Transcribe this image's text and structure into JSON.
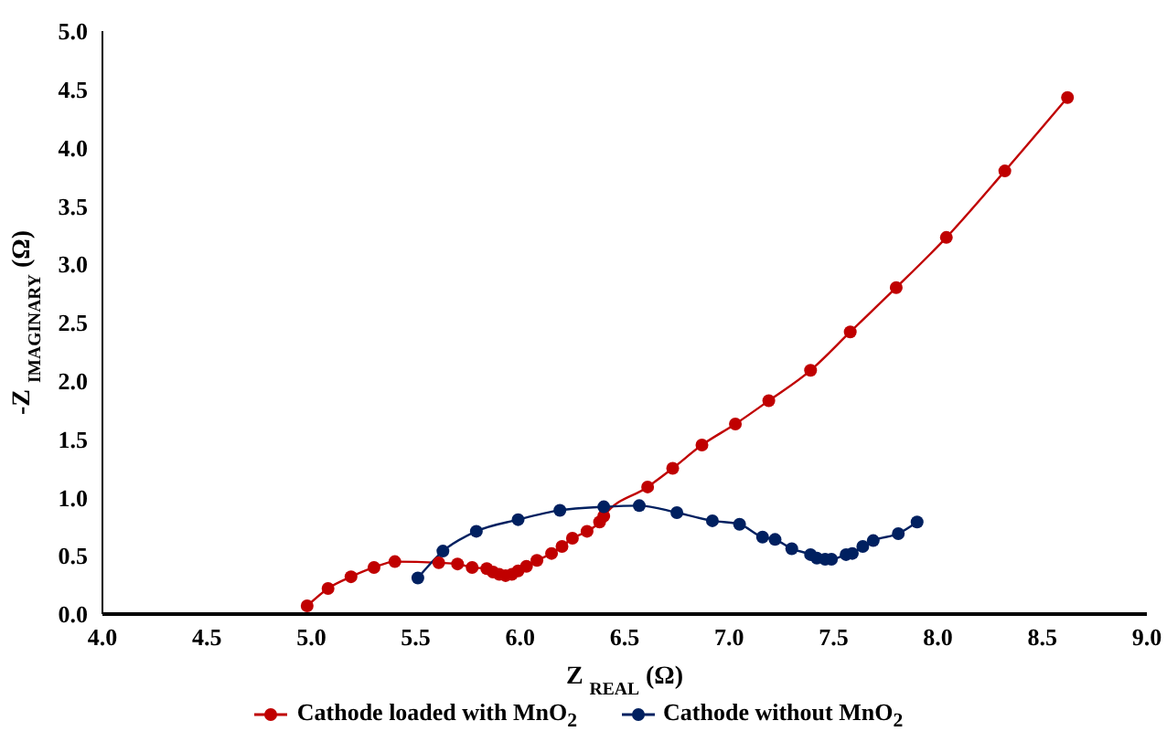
{
  "chart_data": {
    "type": "line",
    "xlabel": "Z $_{REAL}$ (Ω)",
    "ylabel": "-Z $_{IMAGINARY}$ (Ω)",
    "xlim": [
      4.0,
      9.0
    ],
    "ylim": [
      0,
      5.0
    ],
    "xticks": [
      {
        "value": 4,
        "label": "4.0"
      },
      4.5,
      {
        "value": 5,
        "label": "5.0"
      },
      5.5,
      {
        "value": 6,
        "label": "6.0"
      },
      6.5,
      {
        "value": 7,
        "label": "7.0"
      },
      7.5,
      {
        "value": 8,
        "label": "8.0"
      },
      8.5,
      {
        "value": 9,
        "label": "9.0"
      }
    ],
    "yticks": [
      {
        "value": 0,
        "label": "0.0"
      },
      0.5,
      {
        "value": 1,
        "label": "1.0"
      },
      1.5,
      {
        "value": 2,
        "label": "2.0"
      },
      2.5,
      {
        "value": 3,
        "label": "3.0"
      },
      3.5,
      {
        "value": 4,
        "label": "4.0"
      },
      4.5,
      {
        "value": 5,
        "label": "5.0"
      }
    ],
    "grid": false,
    "legend": "bottom",
    "marker": "circle",
    "line_style": "solid",
    "series": [
      {
        "name": "Cathode loaded with MnO$_{2}$",
        "color": "#c00000",
        "x": [
          4.98,
          5.08,
          5.19,
          5.3,
          5.4,
          5.61,
          5.7,
          5.77,
          5.84,
          5.87,
          5.9,
          5.93,
          5.96,
          5.99,
          6.03,
          6.08,
          6.15,
          6.2,
          6.25,
          6.32,
          6.38,
          6.4,
          6.61,
          6.73,
          6.87,
          7.03,
          7.19,
          7.39,
          7.58,
          7.8,
          8.04,
          8.32,
          8.62
        ],
        "values": [
          0.07,
          0.22,
          0.32,
          0.4,
          0.45,
          0.44,
          0.43,
          0.4,
          0.39,
          0.36,
          0.34,
          0.33,
          0.34,
          0.37,
          0.41,
          0.46,
          0.52,
          0.58,
          0.65,
          0.71,
          0.79,
          0.84,
          1.09,
          1.25,
          1.45,
          1.63,
          1.83,
          2.09,
          2.42,
          2.8,
          3.23,
          3.8,
          4.43
        ]
      },
      {
        "name": "Cathode without MnO$_{2}$",
        "color": "#002060",
        "x": [
          5.51,
          5.63,
          5.79,
          5.99,
          6.19,
          6.4,
          6.57,
          6.75,
          6.92,
          7.05,
          7.16,
          7.22,
          7.3,
          7.39,
          7.42,
          7.46,
          7.49,
          7.56,
          7.59,
          7.64,
          7.69,
          7.81,
          7.9
        ],
        "values": [
          0.31,
          0.54,
          0.71,
          0.81,
          0.89,
          0.92,
          0.93,
          0.87,
          0.8,
          0.77,
          0.66,
          0.64,
          0.56,
          0.51,
          0.48,
          0.47,
          0.47,
          0.51,
          0.52,
          0.58,
          0.63,
          0.69,
          0.79
        ]
      }
    ]
  }
}
